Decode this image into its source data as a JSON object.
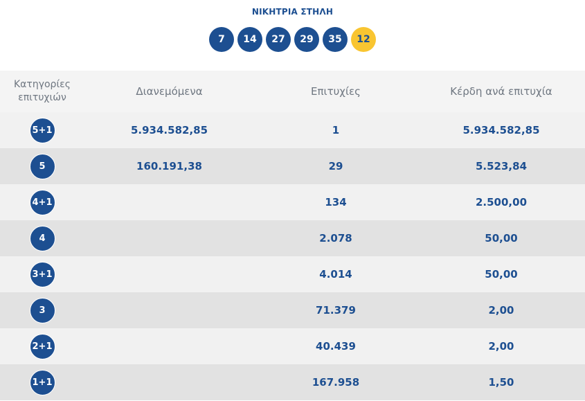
{
  "title": "ΝΙΚΗΤΡΙΑ ΣΤΗΛΗ",
  "winning_numbers": [
    "7",
    "14",
    "27",
    "29",
    "35"
  ],
  "bonus_number": "12",
  "colors": {
    "primary": "#1d4f91",
    "bonus": "#f9c531"
  },
  "table": {
    "headers": {
      "category": "Κατηγορίες επιτυχιών",
      "distributed": "Διανεμόμενα",
      "winners": "Επιτυχίες",
      "prize": "Κέρδη ανά επιτυχία"
    },
    "rows": [
      {
        "category": "5+1",
        "distributed": "5.934.582,85",
        "winners": "1",
        "prize": "5.934.582,85"
      },
      {
        "category": "5",
        "distributed": "160.191,38",
        "winners": "29",
        "prize": "5.523,84"
      },
      {
        "category": "4+1",
        "distributed": "",
        "winners": "134",
        "prize": "2.500,00"
      },
      {
        "category": "4",
        "distributed": "",
        "winners": "2.078",
        "prize": "50,00"
      },
      {
        "category": "3+1",
        "distributed": "",
        "winners": "4.014",
        "prize": "50,00"
      },
      {
        "category": "3",
        "distributed": "",
        "winners": "71.379",
        "prize": "2,00"
      },
      {
        "category": "2+1",
        "distributed": "",
        "winners": "40.439",
        "prize": "2,00"
      },
      {
        "category": "1+1",
        "distributed": "",
        "winners": "167.958",
        "prize": "1,50"
      }
    ]
  }
}
